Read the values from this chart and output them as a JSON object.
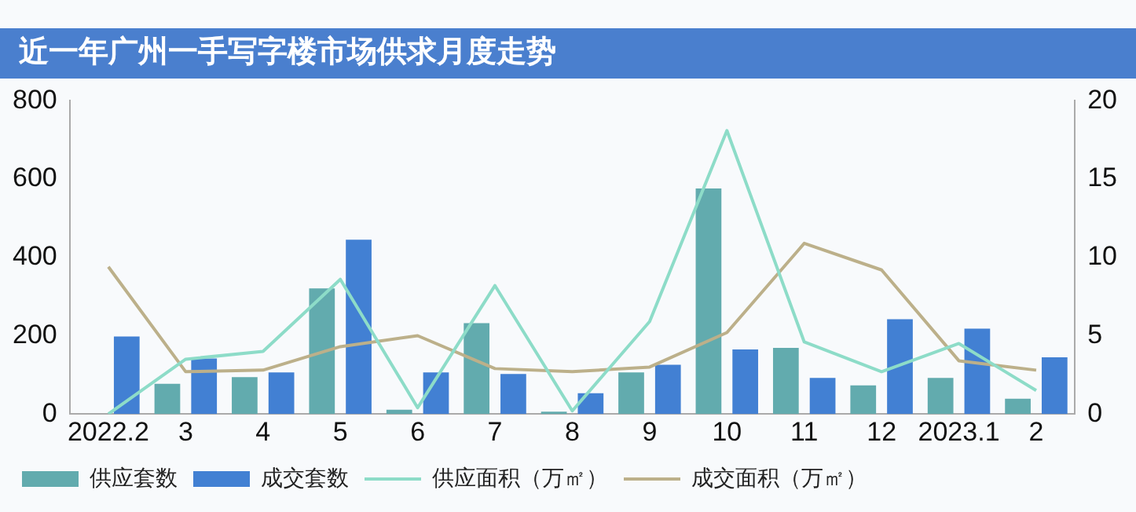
{
  "chart_data": {
    "type": "bar",
    "title": "近一年广州一手写字楼市场供求月度走势",
    "categories": [
      "2022.2",
      "3",
      "4",
      "5",
      "6",
      "7",
      "8",
      "9",
      "10",
      "11",
      "12",
      "2023.1",
      "2"
    ],
    "series": [
      {
        "name": "供应套数",
        "color": "#62abae",
        "values": [
          0,
          77,
          94,
          321,
          11,
          232,
          6,
          106,
          576,
          169,
          73,
          92,
          39
        ]
      },
      {
        "name": "成交套数",
        "color": "#4280d3",
        "values": [
          198,
          142,
          106,
          445,
          106,
          102,
          53,
          126,
          165,
          92,
          242,
          218,
          145
        ]
      },
      {
        "name": "供应面积（万㎡）",
        "type": "line",
        "axis": "y2",
        "color": "#8ddcc8",
        "values": [
          0,
          3.5,
          4.0,
          8.6,
          0.4,
          8.2,
          0.2,
          5.9,
          18.1,
          4.6,
          2.7,
          4.5,
          1.5
        ]
      },
      {
        "name": "成交面积（万㎡）",
        "type": "line",
        "axis": "y2",
        "color": "#bcb08a",
        "values": [
          9.4,
          2.7,
          2.8,
          4.3,
          5.0,
          2.9,
          2.7,
          3.0,
          5.2,
          10.9,
          9.2,
          3.4,
          2.8
        ]
      }
    ],
    "ylim": [
      0,
      800
    ],
    "yticks": [
      0,
      200,
      400,
      600,
      800
    ],
    "y2lim": [
      0,
      20
    ],
    "y2ticks": [
      0,
      5,
      10,
      15,
      20
    ],
    "grid": false,
    "legend": "bottom",
    "marker": "none",
    "line_style": "solid"
  }
}
